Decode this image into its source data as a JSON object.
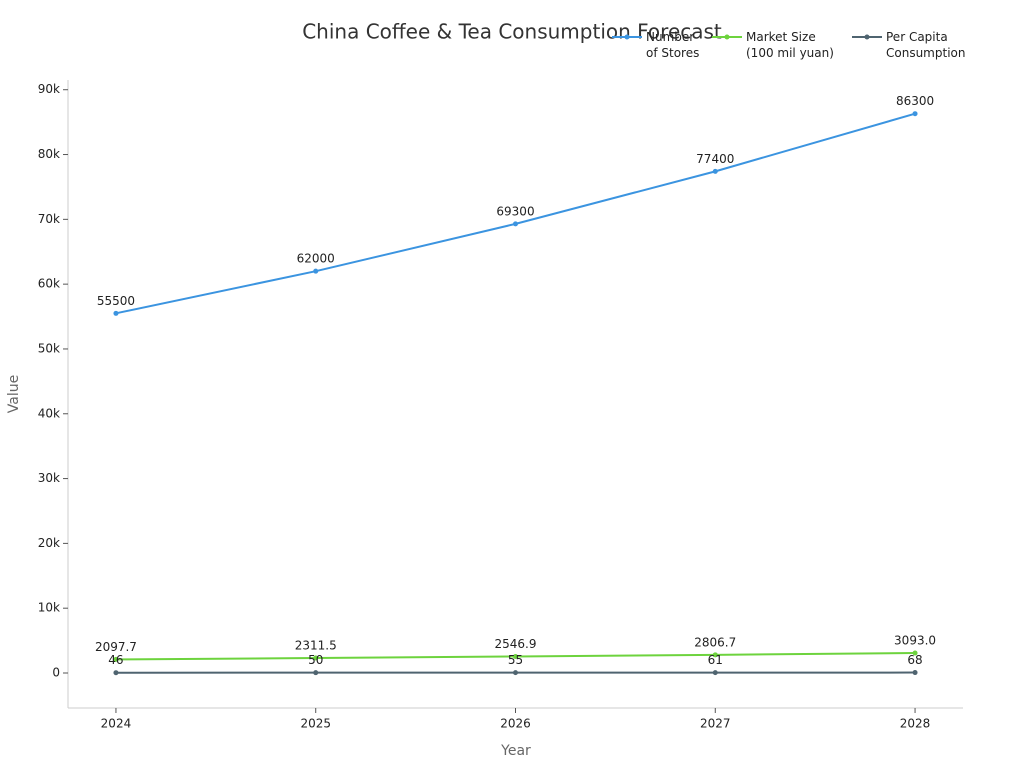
{
  "chart_data": {
    "type": "line",
    "title": "China Coffee & Tea Consumption Forecast",
    "x_label": "Year",
    "y_label": "Value",
    "x": [
      2024,
      2025,
      2026,
      2027,
      2028
    ],
    "xlim": [
      2023.76,
      2028.24
    ],
    "xticks": [
      2024,
      2025,
      2026,
      2027,
      2028
    ],
    "ylim": [
      -5400,
      91500
    ],
    "yticks": [
      0,
      {
        "value": 10000,
        "label": "10k"
      },
      {
        "value": 20000,
        "label": "20k"
      },
      {
        "value": 30000,
        "label": "30k"
      },
      {
        "value": 40000,
        "label": "40k"
      },
      {
        "value": 50000,
        "label": "50k"
      },
      {
        "value": 60000,
        "label": "60k"
      },
      {
        "value": 70000,
        "label": "70k"
      },
      {
        "value": 80000,
        "label": "80k"
      },
      {
        "value": 90000,
        "label": "90k"
      }
    ],
    "grid": false,
    "legend": "top-right",
    "series": [
      {
        "name": "Number of Stores",
        "color": "#3b94e0",
        "values": [
          55500,
          62000,
          69300,
          77400,
          86300
        ]
      },
      {
        "name": "Market Size (100 mil yuan)",
        "color": "#6dd33d",
        "values": [
          2097.7,
          2311.5,
          2546.9,
          2806.7,
          3093.0
        ],
        "value_labels": [
          "2097.7",
          "2311.5",
          "2546.9",
          "2806.7",
          "3093.0"
        ]
      },
      {
        "name": "Per Capita Consumption",
        "color": "#4f6470",
        "values": [
          46,
          50,
          55,
          61,
          68
        ]
      }
    ]
  }
}
